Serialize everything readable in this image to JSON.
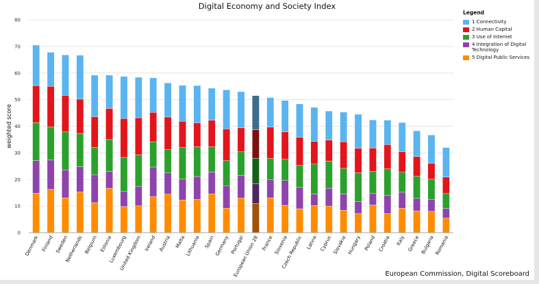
{
  "title": "Digital Economy and Society Index",
  "credit": "European Commission, Digital Scoreboard",
  "legend": {
    "title": "Legend",
    "placement": "top-right"
  },
  "chart_data": {
    "type": "bar",
    "stacked": true,
    "title": "Digital Economy and Society Index",
    "ylabel": "weighted score",
    "xlabel": "",
    "ylim": [
      0,
      80
    ],
    "yticks": [
      0,
      10,
      20,
      30,
      40,
      50,
      60,
      70,
      80
    ],
    "grid": true,
    "highlight_category": "European Union 28",
    "categories": [
      "Denmark",
      "Finland",
      "Sweden",
      "Netherlands",
      "Belgium",
      "Estonia",
      "Luxembourg",
      "United Kingdom",
      "Ireland",
      "Austria",
      "Malta",
      "Lithuania",
      "Spain",
      "Germany",
      "Portugal",
      "European Union 28",
      "France",
      "Slovenia",
      "Czech Republic",
      "Latvia",
      "Cyprus",
      "Slovakia",
      "Hungary",
      "Poland",
      "Croatia",
      "Italy",
      "Greece",
      "Bulgaria",
      "Romania"
    ],
    "series": [
      {
        "name": "5 Digital Public Services",
        "color": "#ff8c00",
        "highlight_color": "#a0520a",
        "values": [
          14.8,
          16.3,
          13.1,
          15.3,
          11.3,
          16.7,
          9.8,
          10.1,
          13.6,
          14.5,
          12.3,
          12.5,
          14.6,
          9.2,
          13.0,
          11.0,
          13.1,
          10.3,
          9.0,
          10.2,
          10.0,
          8.4,
          7.2,
          10.4,
          7.2,
          9.2,
          8.2,
          8.0,
          5.5
        ]
      },
      {
        "name": "4 Integration of Digital Technology",
        "color": "#8e44ad",
        "highlight_color": "#4f2660",
        "values": [
          12.3,
          11.0,
          10.5,
          9.5,
          10.5,
          6.3,
          5.7,
          7.3,
          11.1,
          8.0,
          7.8,
          8.6,
          8.2,
          8.5,
          8.5,
          7.4,
          6.9,
          9.3,
          8.0,
          4.3,
          6.7,
          6.1,
          4.5,
          4.3,
          6.8,
          6.0,
          4.7,
          4.5,
          3.6
        ]
      },
      {
        "name": "3 Use of Internet",
        "color": "#2ca02c",
        "highlight_color": "#176017",
        "values": [
          14.3,
          12.5,
          14.3,
          12.5,
          10.3,
          12.0,
          12.8,
          11.9,
          9.5,
          8.7,
          11.9,
          11.2,
          9.5,
          9.4,
          8.9,
          9.6,
          7.9,
          8.0,
          8.3,
          11.3,
          10.2,
          9.7,
          10.8,
          8.3,
          10.0,
          7.5,
          8.3,
          7.6,
          5.6
        ]
      },
      {
        "name": "2 Human Capital",
        "color": "#e3151c",
        "highlight_color": "#7d1010",
        "values": [
          13.9,
          15.2,
          13.7,
          12.9,
          11.5,
          11.7,
          14.6,
          13.9,
          11.0,
          12.3,
          9.9,
          9.0,
          10.0,
          11.9,
          9.0,
          10.7,
          11.8,
          10.3,
          10.6,
          8.5,
          7.9,
          10.0,
          9.2,
          8.8,
          9.1,
          7.7,
          7.4,
          6.0,
          6.2
        ]
      },
      {
        "name": "1 Connectivity",
        "color": "#5ab4f0",
        "highlight_color": "#3c6d8e",
        "values": [
          15.2,
          12.8,
          15.2,
          16.5,
          15.6,
          12.5,
          15.8,
          15.2,
          13.0,
          12.8,
          13.5,
          14.0,
          12.0,
          14.7,
          13.6,
          12.8,
          11.1,
          11.8,
          12.5,
          12.8,
          10.9,
          11.1,
          12.8,
          10.6,
          9.2,
          11.0,
          9.7,
          10.6,
          11.1
        ]
      }
    ]
  }
}
